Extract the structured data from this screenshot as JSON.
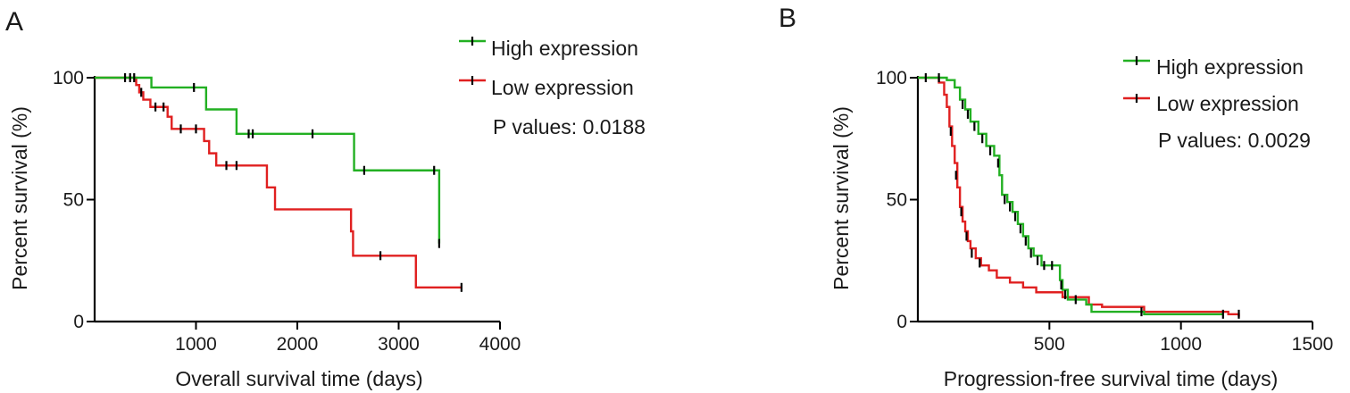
{
  "chart_data": [
    {
      "type": "line",
      "panel_label": "A",
      "xlabel": "Overall survival time (days)",
      "ylabel": "Percent survival (%)",
      "xlim": [
        0,
        4000
      ],
      "ylim": [
        0,
        100
      ],
      "xticks": [
        1000,
        2000,
        3000,
        4000
      ],
      "yticks": [
        0,
        50,
        100
      ],
      "grid": false,
      "legend_position": "top-right",
      "series": [
        {
          "name": "High expression",
          "color": "#22b022",
          "steps": [
            [
              0,
              100
            ],
            [
              560,
              96
            ],
            [
              1100,
              87
            ],
            [
              1400,
              77
            ],
            [
              2560,
              62
            ],
            [
              3400,
              32
            ]
          ],
          "censored": [
            [
              980,
              96
            ],
            [
              1520,
              77
            ],
            [
              1560,
              77
            ],
            [
              2150,
              77
            ],
            [
              2660,
              62
            ],
            [
              3350,
              62
            ],
            [
              3400,
              32
            ]
          ]
        },
        {
          "name": "Low expression",
          "color": "#e02020",
          "steps": [
            [
              0,
              100
            ],
            [
              410,
              97
            ],
            [
              440,
              94
            ],
            [
              480,
              91
            ],
            [
              550,
              88
            ],
            [
              720,
              84
            ],
            [
              760,
              79
            ],
            [
              1080,
              74
            ],
            [
              1130,
              69
            ],
            [
              1200,
              64
            ],
            [
              1700,
              55
            ],
            [
              1780,
              46
            ],
            [
              2530,
              37
            ],
            [
              2550,
              27
            ],
            [
              3170,
              14
            ]
          ],
          "censored": [
            [
              300,
              100
            ],
            [
              350,
              100
            ],
            [
              390,
              100
            ],
            [
              460,
              94
            ],
            [
              600,
              88
            ],
            [
              680,
              88
            ],
            [
              850,
              79
            ],
            [
              1000,
              79
            ],
            [
              1300,
              64
            ],
            [
              1400,
              64
            ],
            [
              2820,
              27
            ],
            [
              3620,
              14
            ]
          ]
        }
      ],
      "annotation": "P values: 0.0188"
    },
    {
      "type": "line",
      "panel_label": "B",
      "xlabel": "Progression-free survival time (days)",
      "ylabel": "Percent survival (%)",
      "xlim": [
        0,
        1500
      ],
      "ylim": [
        0,
        100
      ],
      "xticks": [
        500,
        1000,
        1500
      ],
      "yticks": [
        0,
        50,
        100
      ],
      "grid": false,
      "legend_position": "top-right",
      "series": [
        {
          "name": "High expression",
          "color": "#22b022",
          "steps": [
            [
              0,
              100
            ],
            [
              110,
              99
            ],
            [
              140,
              96
            ],
            [
              160,
              91
            ],
            [
              180,
              87
            ],
            [
              200,
              82
            ],
            [
              230,
              77
            ],
            [
              260,
              72
            ],
            [
              290,
              68
            ],
            [
              310,
              60
            ],
            [
              320,
              52
            ],
            [
              340,
              49
            ],
            [
              360,
              45
            ],
            [
              380,
              40
            ],
            [
              400,
              35
            ],
            [
              420,
              30
            ],
            [
              440,
              27
            ],
            [
              470,
              23
            ],
            [
              540,
              17
            ],
            [
              550,
              13
            ],
            [
              570,
              9
            ],
            [
              640,
              7
            ],
            [
              660,
              4
            ],
            [
              860,
              3
            ]
          ],
          "censored": [
            [
              30,
              100
            ],
            [
              80,
              100
            ],
            [
              170,
              89
            ],
            [
              190,
              85
            ],
            [
              215,
              80
            ],
            [
              245,
              75
            ],
            [
              275,
              70
            ],
            [
              305,
              65
            ],
            [
              330,
              50
            ],
            [
              350,
              47
            ],
            [
              370,
              43
            ],
            [
              390,
              38
            ],
            [
              410,
              33
            ],
            [
              430,
              28
            ],
            [
              455,
              25
            ],
            [
              480,
              23
            ],
            [
              510,
              23
            ],
            [
              545,
              15
            ],
            [
              560,
              11
            ],
            [
              600,
              9
            ],
            [
              850,
              4
            ],
            [
              1160,
              3
            ]
          ]
        },
        {
          "name": "Low expression",
          "color": "#e02020",
          "steps": [
            [
              0,
              100
            ],
            [
              80,
              98
            ],
            [
              100,
              93
            ],
            [
              110,
              88
            ],
            [
              120,
              80
            ],
            [
              130,
              72
            ],
            [
              140,
              65
            ],
            [
              150,
              55
            ],
            [
              160,
              47
            ],
            [
              170,
              41
            ],
            [
              180,
              37
            ],
            [
              190,
              33
            ],
            [
              200,
              30
            ],
            [
              220,
              26
            ],
            [
              240,
              23
            ],
            [
              270,
              21
            ],
            [
              300,
              18
            ],
            [
              350,
              16
            ],
            [
              400,
              14
            ],
            [
              450,
              12
            ],
            [
              550,
              10
            ],
            [
              650,
              7
            ],
            [
              700,
              6
            ],
            [
              860,
              4
            ],
            [
              1180,
              3
            ],
            [
              1220,
              2
            ]
          ],
          "censored": [
            [
              125,
              78
            ],
            [
              145,
              60
            ],
            [
              165,
              45
            ],
            [
              185,
              35
            ],
            [
              205,
              28
            ],
            [
              235,
              24
            ],
            [
              1220,
              3
            ]
          ]
        }
      ],
      "annotation": "P values: 0.0029"
    }
  ]
}
